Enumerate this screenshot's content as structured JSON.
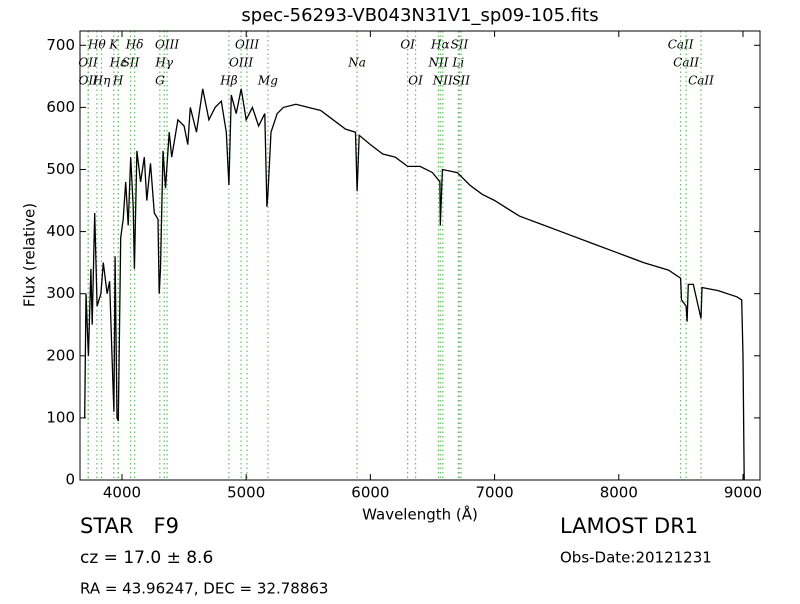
{
  "chart_data": {
    "type": "line",
    "title": "spec-56293-VB043N31V1_sp09-105.fits",
    "x_label": "Wavelength (Å)",
    "y_label": "Flux (relative)",
    "xlim": [
      3662,
      9137
    ],
    "ylim": [
      0,
      723
    ],
    "xticks": [
      4000,
      5000,
      6000,
      7000,
      8000,
      9000
    ],
    "yticks": [
      0,
      100,
      200,
      300,
      400,
      500,
      600,
      700
    ],
    "color": "#000000",
    "line_color": "#66bb66",
    "x": [
      3700,
      3710,
      3730,
      3750,
      3760,
      3780,
      3800,
      3830,
      3850,
      3880,
      3900,
      3920,
      3935,
      3945,
      3960,
      3970,
      3990,
      4010,
      4030,
      4050,
      4070,
      4090,
      4100,
      4120,
      4150,
      4180,
      4200,
      4230,
      4260,
      4290,
      4300,
      4310,
      4330,
      4350,
      4380,
      4400,
      4450,
      4500,
      4530,
      4550,
      4600,
      4650,
      4700,
      4750,
      4800,
      4840,
      4861,
      4880,
      4920,
      4960,
      5000,
      5050,
      5100,
      5150,
      5167,
      5175,
      5200,
      5250,
      5300,
      5400,
      5500,
      5600,
      5700,
      5800,
      5880,
      5893,
      5910,
      6000,
      6100,
      6200,
      6300,
      6400,
      6500,
      6560,
      6563,
      6580,
      6700,
      6800,
      6900,
      7000,
      7200,
      7400,
      7600,
      7800,
      8000,
      8200,
      8400,
      8498,
      8505,
      8542,
      8550,
      8560,
      8600,
      8662,
      8670,
      8800,
      8950,
      8990,
      9000,
      9010
    ],
    "values": [
      100,
      300,
      200,
      340,
      250,
      430,
      280,
      300,
      350,
      300,
      320,
      200,
      110,
      360,
      100,
      95,
      390,
      420,
      480,
      410,
      520,
      440,
      340,
      530,
      480,
      520,
      450,
      510,
      430,
      420,
      300,
      340,
      530,
      470,
      560,
      520,
      580,
      570,
      540,
      600,
      560,
      630,
      580,
      600,
      610,
      560,
      475,
      620,
      590,
      630,
      580,
      600,
      570,
      590,
      440,
      460,
      560,
      590,
      600,
      605,
      600,
      595,
      580,
      565,
      560,
      465,
      555,
      540,
      525,
      520,
      505,
      505,
      495,
      480,
      410,
      500,
      495,
      475,
      460,
      450,
      425,
      410,
      395,
      380,
      365,
      350,
      338,
      325,
      290,
      280,
      255,
      315,
      315,
      260,
      310,
      305,
      295,
      290,
      200,
      0
    ],
    "line_labels": [
      [
        {
          "label": "Hθ",
          "x": 3798
        },
        {
          "label": "K",
          "x": 3934
        },
        {
          "label": "Hδ",
          "x": 4102
        },
        {
          "label": "OIII",
          "x": 4363
        },
        {
          "label": "OIII",
          "x": 5007
        },
        {
          "label": "OI",
          "x": 6300
        },
        {
          "label": "Hα",
          "x": 6563
        },
        {
          "label": "SII",
          "x": 6717
        },
        {
          "label": "CaII",
          "x": 8498
        }
      ],
      [
        {
          "label": "OII",
          "x": 3727
        },
        {
          "label": "Hε",
          "x": 3970
        },
        {
          "label": "SII",
          "x": 4069
        },
        {
          "label": "Hγ",
          "x": 4340
        },
        {
          "label": "OIII",
          "x": 4959
        },
        {
          "label": "Na",
          "x": 5893
        },
        {
          "label": "NII",
          "x": 6548
        },
        {
          "label": "Li",
          "x": 6708
        },
        {
          "label": "CaII",
          "x": 8542
        }
      ],
      [
        {
          "label": "OII",
          "x": 3729
        },
        {
          "label": "Hη",
          "x": 3835
        },
        {
          "label": "H",
          "x": 3969
        },
        {
          "label": "G",
          "x": 4305
        },
        {
          "label": "Hβ",
          "x": 4861
        },
        {
          "label": "Mg",
          "x": 5175
        },
        {
          "label": "OI",
          "x": 6364
        },
        {
          "label": "NII",
          "x": 6583
        },
        {
          "label": "SII",
          "x": 6731
        },
        {
          "label": "CaII",
          "x": 8662
        }
      ]
    ]
  },
  "footer": {
    "object": "STAR   F9",
    "cz": "cz = 17.0 ± 8.6",
    "coords": "RA = 43.96247, DEC = 32.78863",
    "survey": "LAMOST DR1",
    "date": "Obs-Date:20121231"
  }
}
